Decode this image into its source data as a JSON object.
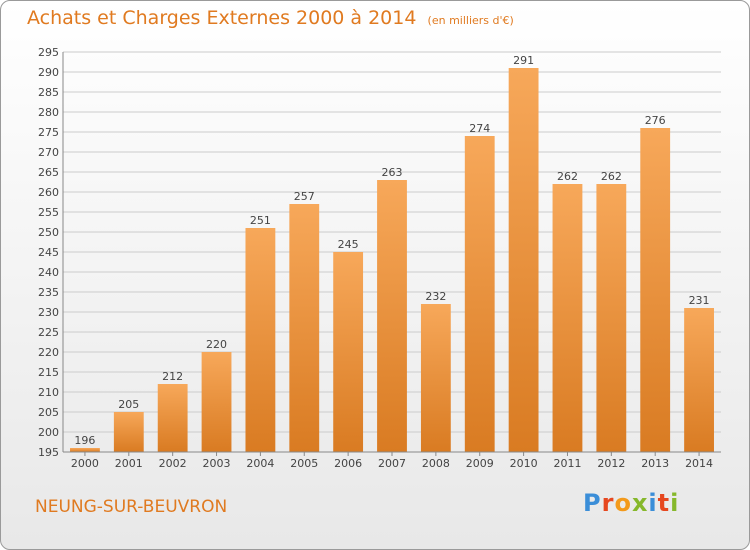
{
  "title": "Achats et Charges Externes 2000 à 2014",
  "unit_note": "(en milliers d'€)",
  "commune": "NEUNG-SUR-BEUVRON",
  "logo": {
    "text": "Proxiti",
    "colors": [
      "#3b8ed8",
      "#e6471f",
      "#f39a1b",
      "#86b82b",
      "#3b8ed8",
      "#e6471f",
      "#86b82b"
    ]
  },
  "colors": {
    "accent": "#e07a20",
    "bar_light": "#f7a85a",
    "bar_dark": "#d97b22",
    "grid": "#cccccc",
    "axis": "#888888"
  },
  "chart_data": {
    "type": "bar",
    "categories": [
      "2000",
      "2001",
      "2002",
      "2003",
      "2004",
      "2005",
      "2006",
      "2007",
      "2008",
      "2009",
      "2010",
      "2011",
      "2012",
      "2013",
      "2014"
    ],
    "values": [
      196,
      205,
      212,
      220,
      251,
      257,
      245,
      263,
      232,
      274,
      291,
      262,
      262,
      276,
      231
    ],
    "title": "Achats et Charges Externes 2000 à 2014",
    "ylim": [
      195,
      295
    ],
    "yticks": [
      195,
      200,
      205,
      210,
      215,
      220,
      225,
      230,
      235,
      240,
      245,
      250,
      255,
      260,
      265,
      270,
      275,
      280,
      285,
      290,
      295
    ],
    "grid": true,
    "data_labels": true
  }
}
